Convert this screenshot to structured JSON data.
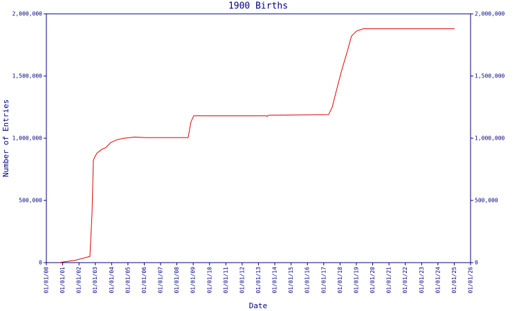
{
  "chart_data": {
    "type": "line",
    "title": "1900 Births",
    "xlabel": "Date",
    "ylabel": "Number of Entries",
    "xlim": [
      0,
      26
    ],
    "xticks": [
      {
        "value": 0,
        "label": "01/01/00"
      },
      {
        "value": 1,
        "label": "01/01/01"
      },
      {
        "value": 2,
        "label": "01/01/02"
      },
      {
        "value": 3,
        "label": "01/01/03"
      },
      {
        "value": 4,
        "label": "01/01/04"
      },
      {
        "value": 5,
        "label": "01/01/05"
      },
      {
        "value": 6,
        "label": "01/01/06"
      },
      {
        "value": 7,
        "label": "01/01/07"
      },
      {
        "value": 8,
        "label": "01/01/08"
      },
      {
        "value": 9,
        "label": "01/01/09"
      },
      {
        "value": 10,
        "label": "01/01/10"
      },
      {
        "value": 11,
        "label": "01/01/11"
      },
      {
        "value": 12,
        "label": "01/01/12"
      },
      {
        "value": 13,
        "label": "01/01/13"
      },
      {
        "value": 14,
        "label": "01/01/14"
      },
      {
        "value": 15,
        "label": "01/01/15"
      },
      {
        "value": 16,
        "label": "01/01/16"
      },
      {
        "value": 17,
        "label": "01/01/17"
      },
      {
        "value": 18,
        "label": "01/01/18"
      },
      {
        "value": 19,
        "label": "01/01/19"
      },
      {
        "value": 20,
        "label": "01/01/20"
      },
      {
        "value": 21,
        "label": "01/01/21"
      },
      {
        "value": 22,
        "label": "01/01/22"
      },
      {
        "value": 23,
        "label": "01/01/23"
      },
      {
        "value": 24,
        "label": "01/01/24"
      },
      {
        "value": 25,
        "label": "01/01/25"
      },
      {
        "value": 26,
        "label": "01/01/26"
      }
    ],
    "ylim": [
      0,
      2000000
    ],
    "yticks": [
      0,
      {
        "value": 500000,
        "label": "500,000"
      },
      {
        "value": 1000000,
        "label": "1,000,000"
      },
      {
        "value": 1500000,
        "label": "1,500,000"
      },
      {
        "value": 2000000,
        "label": "2,000,000"
      }
    ],
    "y2lim": [
      0,
      2000000
    ],
    "y2ticks": [
      0,
      {
        "value": 500000,
        "label": "500,000"
      },
      {
        "value": 1000000,
        "label": "1,000,000"
      },
      {
        "value": 1500000,
        "label": "1,500,000"
      },
      {
        "value": 2000000,
        "label": "2,000,000"
      }
    ],
    "axis_color": "#000080",
    "series": [
      {
        "color": "#dd0000",
        "x": [
          0.76,
          1.82,
          2.67,
          2.8,
          2.88,
          2.97,
          3.1,
          3.39,
          3.65,
          3.94,
          4.37,
          4.79,
          5.43,
          6.06,
          8.69,
          8.86,
          9.03,
          13.49,
          13.53,
          13.61,
          17.3,
          17.52,
          17.81,
          18.11,
          18.45,
          18.7,
          19.0,
          19.42,
          25.02
        ],
        "values": [
          0,
          20000,
          50000,
          400000,
          820000,
          850000,
          880000,
          910000,
          925000,
          965000,
          990000,
          1000000,
          1010000,
          1005000,
          1005000,
          1130000,
          1180000,
          1180000,
          1175000,
          1185000,
          1190000,
          1250000,
          1400000,
          1550000,
          1700000,
          1820000,
          1860000,
          1880000,
          1880000
        ]
      }
    ]
  }
}
